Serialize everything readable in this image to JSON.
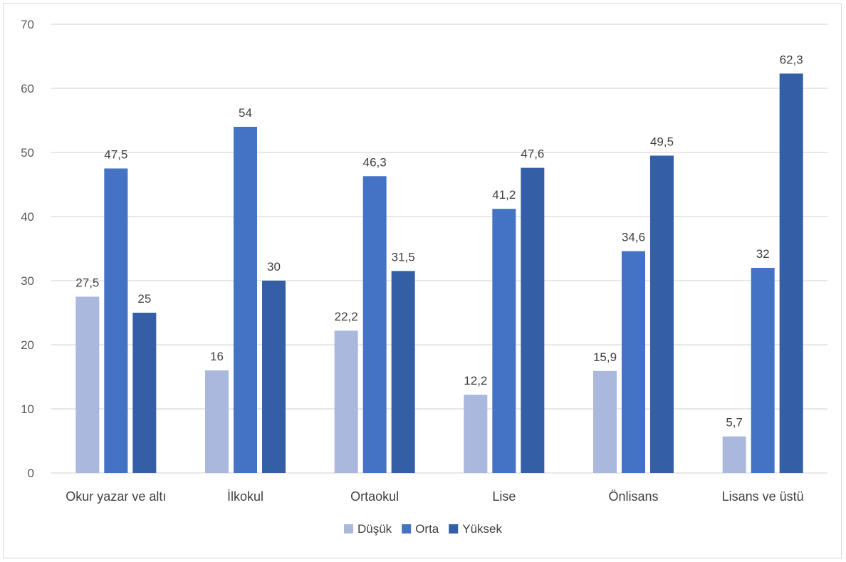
{
  "chart_data": {
    "type": "bar",
    "title": "",
    "xlabel": "",
    "ylabel": "",
    "ylim": [
      0,
      70
    ],
    "yticks": [
      0,
      10,
      20,
      30,
      40,
      50,
      60,
      70
    ],
    "grid": true,
    "legend_position": "bottom",
    "categories": [
      "Okur yazar ve altı",
      "İlkokul",
      "Ortaokul",
      "Lise",
      "Önlisans",
      "Lisans ve üstü"
    ],
    "series": [
      {
        "name": "Düşük",
        "color": "#a9b8dc",
        "values": [
          27.5,
          16,
          22.2,
          12.2,
          15.9,
          5.7
        ],
        "labels": [
          "27,5",
          "16",
          "22,2",
          "12,2",
          "15,9",
          "5,7"
        ]
      },
      {
        "name": "Orta",
        "color": "#4472c4",
        "values": [
          47.5,
          54,
          46.3,
          41.2,
          34.6,
          32
        ],
        "labels": [
          "47,5",
          "54",
          "46,3",
          "41,2",
          "34,6",
          "32"
        ]
      },
      {
        "name": "Yüksek",
        "color": "#345ea6",
        "values": [
          25,
          30,
          31.5,
          47.6,
          49.5,
          62.3
        ],
        "labels": [
          "25",
          "30",
          "31,5",
          "47,6",
          "49,5",
          "62,3"
        ]
      }
    ]
  }
}
